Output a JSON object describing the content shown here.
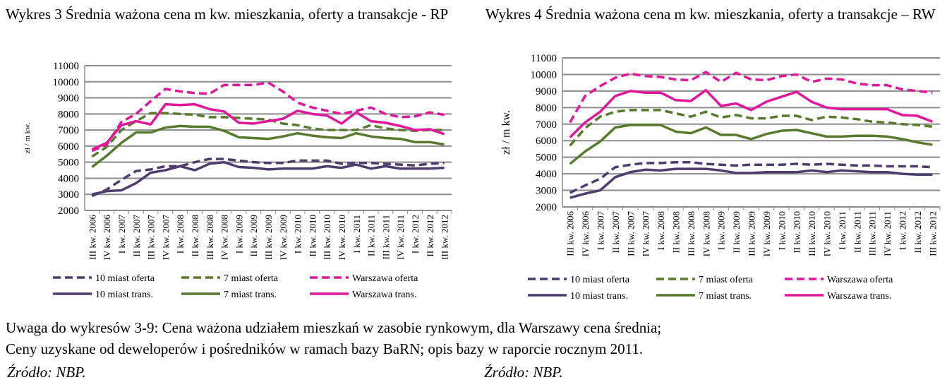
{
  "titles": [
    "Wykres 3 Średnia ważona cena m kw. mieszkania, oferty a transakcje - RP",
    "Wykres 4 Średnia ważona cena m kw. mieszkania, oferty a transakcje – RW"
  ],
  "notes": [
    "Uwaga do wykresów 3-9: Cena ważona udziałem mieszkań w zasobie rynkowym, dla Warszawy cena średnia;",
    "Ceny uzyskane od deweloperów i pośredników w ramach bazy BaRN; opis bazy w raporcie rocznym 2011."
  ],
  "sources": [
    "Źródło: NBP.",
    "Źródło: NBP."
  ],
  "colors": {
    "10": "#4f3c6f",
    "7": "#587a2c",
    "W": "#e0179b"
  },
  "chart_data": [
    {
      "type": "line",
      "title": "Wykres 3 Średnia ważona cena m kw. mieszkania, oferty a transakcje - RP",
      "ylabel": "zł / m kw.",
      "ylim": [
        2000,
        11000
      ],
      "yticks": [
        "2000",
        "3000",
        "4000",
        "5000",
        "6000",
        "7000",
        "8000",
        "9000",
        "10000",
        "11000"
      ],
      "grid": true,
      "legend": "bottom",
      "categories": [
        "III kw. 2006",
        "IV kw. 2006",
        "I kw. 2007",
        "II kw. 2007",
        "III kw. 2007",
        "IV kw. 2007",
        "I kw. 2008",
        "II kw. 2008",
        "III kw. 2008",
        "IV kw. 2008",
        "I kw. 2009",
        "II kw. 2009",
        "III kw. 2009",
        "IV kw. 2009",
        "I kw. 2010",
        "II kw. 2010",
        "III kw. 2010",
        "IV kw. 2010",
        "I kw. 2011",
        "II kw. 2011",
        "III kw. 2011",
        "IV kw. 2011",
        "I kw. 2012",
        "II kw. 2012",
        "III kw. 2012"
      ],
      "series": [
        {
          "name": "10 miast oferta",
          "color": "10",
          "dash": true,
          "values": [
            2900,
            3300,
            3900,
            4450,
            4550,
            4750,
            4750,
            5000,
            5200,
            5200,
            5100,
            5000,
            4950,
            4950,
            5100,
            5100,
            5100,
            4900,
            4950,
            4950,
            4900,
            4850,
            4800,
            4900,
            4950
          ]
        },
        {
          "name": "7 miast oferta",
          "color": "7",
          "dash": true,
          "values": [
            5350,
            5950,
            7000,
            7550,
            8050,
            8050,
            8000,
            7950,
            7800,
            7800,
            7750,
            7700,
            7650,
            7400,
            7300,
            7100,
            7000,
            7000,
            7000,
            7300,
            7100,
            7000,
            6950,
            7000,
            7000
          ]
        },
        {
          "name": "Warszawa oferta",
          "color": "W",
          "dash": true,
          "values": [
            5700,
            6100,
            7500,
            8000,
            8800,
            9550,
            9400,
            9300,
            9250,
            9800,
            9800,
            9800,
            9950,
            9400,
            8700,
            8400,
            8200,
            8000,
            8200,
            8400,
            8000,
            7800,
            7850,
            8100,
            7950
          ]
        },
        {
          "name": "10 miast trans.",
          "color": "10",
          "dash": false,
          "values": [
            3000,
            3200,
            3250,
            3700,
            4350,
            4500,
            4750,
            4500,
            4900,
            5000,
            4700,
            4650,
            4550,
            4600,
            4600,
            4600,
            4750,
            4650,
            4850,
            4600,
            4750,
            4600,
            4600,
            4600,
            4650
          ]
        },
        {
          "name": "7 miast trans.",
          "color": "7",
          "dash": false,
          "values": [
            4700,
            5400,
            6200,
            6850,
            6850,
            7150,
            7250,
            7200,
            7200,
            6950,
            6550,
            6500,
            6450,
            6600,
            6800,
            6650,
            6550,
            6500,
            6800,
            6600,
            6500,
            6450,
            6250,
            6250,
            6100
          ]
        },
        {
          "name": "Warszawa trans.",
          "color": "W",
          "dash": false,
          "values": [
            5800,
            6200,
            7300,
            7550,
            7350,
            8600,
            8550,
            8600,
            8300,
            8150,
            7450,
            7400,
            7550,
            7700,
            8200,
            8000,
            7900,
            7400,
            8100,
            7550,
            7450,
            7250,
            7000,
            7050,
            6750
          ]
        }
      ]
    },
    {
      "type": "line",
      "title": "Wykres 4 Średnia ważona cena m kw. mieszkania, oferty a transakcje – RW",
      "ylabel": "zł / m kw.",
      "ylim": [
        2000,
        11000
      ],
      "yticks": [
        "2000",
        "3000",
        "4000",
        "5000",
        "6000",
        "7000",
        "8000",
        "9000",
        "10000",
        "11000"
      ],
      "grid": true,
      "legend": "bottom",
      "categories": [
        "III kw. 2006",
        "IV kw. 2006",
        "I kw. 2007",
        "II kw. 2007",
        "III kw. 2007",
        "IV kw. 2007",
        "I kw. 2008",
        "II kw. 2008",
        "III kw. 2008",
        "IV kw. 2008",
        "I kw. 2009",
        "II kw. 2009",
        "III kw. 2009",
        "IV kw. 2009",
        "I kw. 2010",
        "II kw. 2010",
        "III kw. 2010",
        "IV kw. 2010",
        "I kw. 2011",
        "II kw. 2011",
        "III kw. 2011",
        "IV kw. 2011",
        "I kw. 2012",
        "II kw. 2012",
        "III kw. 2012"
      ],
      "series": [
        {
          "name": "10 miast oferta",
          "color": "10",
          "dash": true,
          "values": [
            2850,
            3300,
            3700,
            4400,
            4550,
            4650,
            4650,
            4700,
            4700,
            4600,
            4550,
            4500,
            4550,
            4550,
            4550,
            4600,
            4550,
            4600,
            4550,
            4500,
            4500,
            4450,
            4450,
            4450,
            4400
          ]
        },
        {
          "name": "7 miast oferta",
          "color": "7",
          "dash": true,
          "values": [
            5700,
            6750,
            7450,
            7750,
            7850,
            7850,
            7850,
            7650,
            7450,
            7750,
            7400,
            7550,
            7350,
            7350,
            7500,
            7500,
            7250,
            7450,
            7400,
            7300,
            7150,
            7100,
            7000,
            6950,
            6850
          ]
        },
        {
          "name": "Warszawa oferta",
          "color": "W",
          "dash": true,
          "values": [
            7100,
            8700,
            9300,
            9800,
            10050,
            9900,
            9850,
            9700,
            9650,
            10150,
            9550,
            10100,
            9700,
            9650,
            9900,
            10000,
            9550,
            9750,
            9700,
            9450,
            9350,
            9350,
            9100,
            9000,
            8900
          ]
        },
        {
          "name": "10 miast trans.",
          "color": "10",
          "dash": false,
          "values": [
            2550,
            2800,
            3000,
            3800,
            4100,
            4250,
            4200,
            4300,
            4300,
            4300,
            4200,
            4050,
            4050,
            4100,
            4100,
            4100,
            4200,
            4100,
            4200,
            4150,
            4100,
            4100,
            4000,
            3950,
            3950
          ]
        },
        {
          "name": "7 miast trans.",
          "color": "7",
          "dash": false,
          "values": [
            4600,
            5350,
            5950,
            6800,
            6950,
            6950,
            6950,
            6550,
            6450,
            6800,
            6350,
            6350,
            6100,
            6400,
            6600,
            6650,
            6450,
            6250,
            6250,
            6300,
            6300,
            6250,
            6100,
            5900,
            5750
          ]
        },
        {
          "name": "Warszawa trans.",
          "color": "W",
          "dash": false,
          "values": [
            6200,
            7100,
            7750,
            8700,
            9000,
            8900,
            8900,
            8450,
            8400,
            9050,
            8100,
            8250,
            7850,
            8350,
            8650,
            8950,
            8350,
            8000,
            7900,
            7900,
            7900,
            7900,
            7550,
            7500,
            7150
          ]
        }
      ]
    }
  ]
}
